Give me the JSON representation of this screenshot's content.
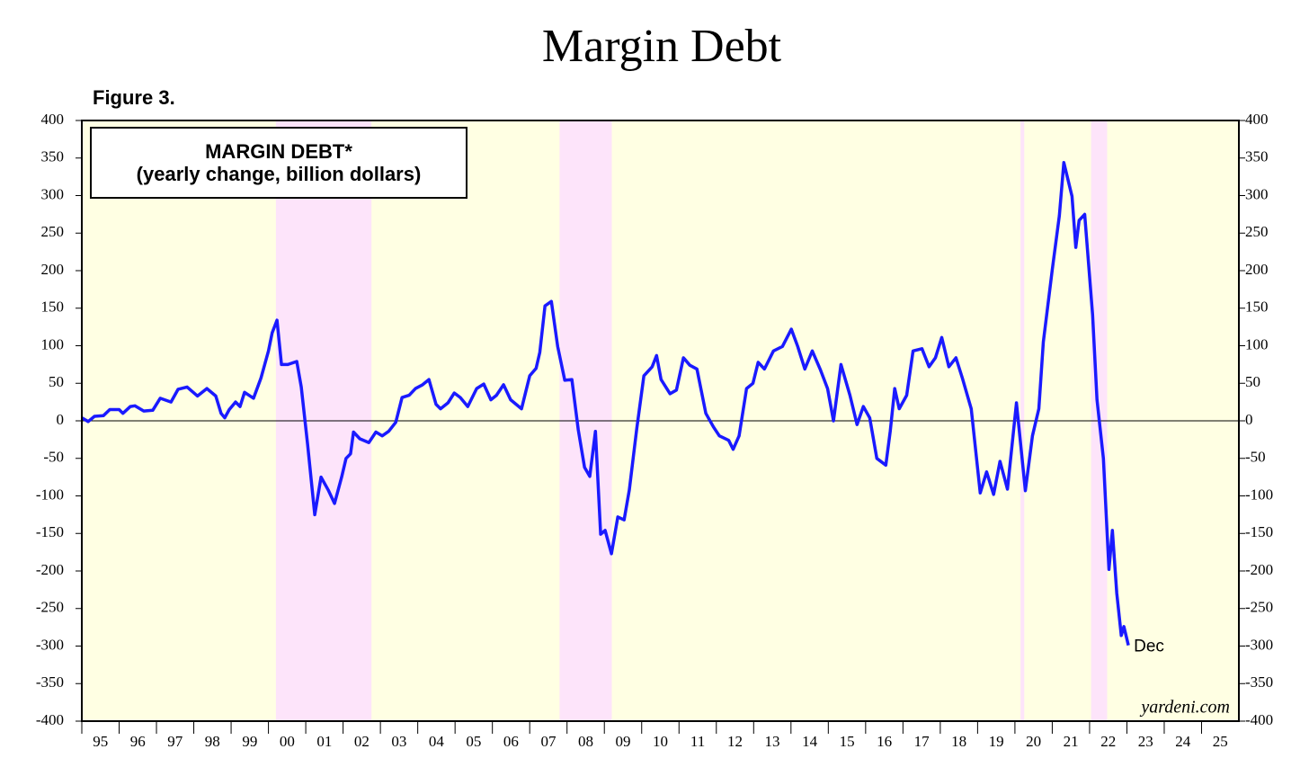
{
  "chart_data": {
    "type": "line",
    "title": "Margin Debt",
    "figure_label": "Figure 3.",
    "legend_box": [
      "MARGIN DEBT*",
      "(yearly change, billion dollars)"
    ],
    "end_label": "Dec",
    "source": "yardeni.com",
    "xlim": [
      1995,
      2026
    ],
    "xticks": [
      {
        "value": 1995,
        "label": "95"
      },
      {
        "value": 1996,
        "label": "96"
      },
      {
        "value": 1997,
        "label": "97"
      },
      {
        "value": 1998,
        "label": "98"
      },
      {
        "value": 1999,
        "label": "99"
      },
      {
        "value": 2000,
        "label": "00"
      },
      {
        "value": 2001,
        "label": "01"
      },
      {
        "value": 2002,
        "label": "02"
      },
      {
        "value": 2003,
        "label": "03"
      },
      {
        "value": 2004,
        "label": "04"
      },
      {
        "value": 2005,
        "label": "05"
      },
      {
        "value": 2006,
        "label": "06"
      },
      {
        "value": 2007,
        "label": "07"
      },
      {
        "value": 2008,
        "label": "08"
      },
      {
        "value": 2009,
        "label": "09"
      },
      {
        "value": 2010,
        "label": "10"
      },
      {
        "value": 2011,
        "label": "11"
      },
      {
        "value": 2012,
        "label": "12"
      },
      {
        "value": 2013,
        "label": "13"
      },
      {
        "value": 2014,
        "label": "14"
      },
      {
        "value": 2015,
        "label": "15"
      },
      {
        "value": 2016,
        "label": "16"
      },
      {
        "value": 2017,
        "label": "17"
      },
      {
        "value": 2018,
        "label": "18"
      },
      {
        "value": 2019,
        "label": "19"
      },
      {
        "value": 2020,
        "label": "20"
      },
      {
        "value": 2021,
        "label": "21"
      },
      {
        "value": 2022,
        "label": "22"
      },
      {
        "value": 2023,
        "label": "23"
      },
      {
        "value": 2024,
        "label": "24"
      },
      {
        "value": 2025,
        "label": "25"
      }
    ],
    "ylim": [
      -400,
      400
    ],
    "yticks": [
      400,
      350,
      300,
      250,
      200,
      150,
      100,
      50,
      0,
      -50,
      -100,
      -150,
      -200,
      -250,
      -300,
      -350,
      -400
    ],
    "y2lim": [
      -400,
      400
    ],
    "y2ticks": [
      400,
      350,
      300,
      250,
      200,
      150,
      100,
      50,
      0,
      -50,
      -100,
      -150,
      -200,
      -250,
      -300,
      -350,
      -400
    ],
    "background_color": "#ffffe3",
    "shaded_color": "#fde4fa",
    "shaded_periods": [
      [
        2000.2,
        2002.76
      ],
      [
        2007.8,
        2009.2
      ],
      [
        2020.15,
        2020.25
      ],
      [
        2022.04,
        2022.47
      ]
    ],
    "x": [
      1995.0,
      1995.17,
      1995.34,
      1995.58,
      1995.75,
      1996.0,
      1996.1,
      1996.3,
      1996.42,
      1996.66,
      1996.9,
      1997.1,
      1997.39,
      1997.58,
      1997.82,
      1998.1,
      1998.35,
      1998.59,
      1998.73,
      1998.83,
      1998.95,
      1999.12,
      1999.24,
      1999.36,
      1999.6,
      1999.8,
      2000.0,
      2000.1,
      2000.23,
      2000.35,
      2000.52,
      2000.76,
      2000.88,
      2001.05,
      2001.24,
      2001.41,
      2001.6,
      2001.77,
      2001.96,
      2002.08,
      2002.2,
      2002.28,
      2002.45,
      2002.69,
      2002.88,
      2003.05,
      2003.22,
      2003.41,
      2003.58,
      2003.77,
      2003.94,
      2004.13,
      2004.3,
      2004.49,
      2004.61,
      2004.81,
      2004.98,
      2005.14,
      2005.34,
      2005.58,
      2005.77,
      2005.96,
      2006.11,
      2006.3,
      2006.49,
      2006.78,
      2007.0,
      2007.17,
      2007.27,
      2007.41,
      2007.58,
      2007.75,
      2007.94,
      2008.13,
      2008.3,
      2008.47,
      2008.61,
      2008.76,
      2008.9,
      2009.02,
      2009.19,
      2009.36,
      2009.53,
      2009.67,
      2009.87,
      2010.06,
      2010.28,
      2010.4,
      2010.52,
      2010.76,
      2010.93,
      2011.12,
      2011.29,
      2011.48,
      2011.72,
      2011.92,
      2012.08,
      2012.33,
      2012.45,
      2012.61,
      2012.81,
      2012.98,
      2013.12,
      2013.29,
      2013.53,
      2013.77,
      2014.01,
      2014.18,
      2014.37,
      2014.57,
      2014.78,
      2014.98,
      2015.14,
      2015.34,
      2015.58,
      2015.77,
      2015.94,
      2016.11,
      2016.3,
      2016.54,
      2016.66,
      2016.78,
      2016.9,
      2017.1,
      2017.27,
      2017.51,
      2017.7,
      2017.87,
      2018.04,
      2018.23,
      2018.42,
      2018.59,
      2018.83,
      2019.07,
      2019.24,
      2019.43,
      2019.6,
      2019.8,
      2020.04,
      2020.28,
      2020.47,
      2020.64,
      2020.76,
      2021.0,
      2021.19,
      2021.31,
      2021.53,
      2021.63,
      2021.72,
      2021.87,
      2022.08,
      2022.2,
      2022.37,
      2022.52,
      2022.61,
      2022.73,
      2022.85,
      2022.92,
      2023.04
    ],
    "series": [
      {
        "name": "MARGIN DEBT*",
        "color": "#1a1aff",
        "values": [
          4,
          -1,
          6,
          7,
          15,
          15,
          10,
          19,
          20,
          13,
          14,
          30,
          25,
          42,
          45,
          33,
          43,
          33,
          10,
          4,
          15,
          25,
          19,
          38,
          30,
          57,
          93,
          117,
          134,
          75,
          75,
          79,
          45,
          -32,
          -125,
          -75,
          -92,
          -110,
          -75,
          -50,
          -44,
          -15,
          -24,
          -29,
          -15,
          -20,
          -14,
          -2,
          31,
          34,
          43,
          48,
          55,
          22,
          16,
          24,
          37,
          31,
          19,
          43,
          49,
          28,
          34,
          48,
          28,
          16,
          60,
          70,
          91,
          153,
          159,
          99,
          54,
          55,
          -12,
          -62,
          -74,
          -14,
          -151,
          -146,
          -177,
          -128,
          -132,
          -92,
          -10,
          60,
          72,
          87,
          55,
          36,
          41,
          84,
          74,
          69,
          10,
          -8,
          -20,
          -26,
          -38,
          -20,
          43,
          50,
          78,
          69,
          93,
          99,
          122,
          99,
          69,
          93,
          69,
          43,
          0,
          75,
          34,
          -5,
          19,
          4,
          -50,
          -59,
          -14,
          43,
          16,
          34,
          93,
          96,
          72,
          84,
          111,
          72,
          84,
          57,
          16,
          -96,
          -68,
          -98,
          -54,
          -91,
          24,
          -93,
          -20,
          16,
          105,
          201,
          273,
          344,
          299,
          231,
          267,
          275,
          141,
          28,
          -50,
          -198,
          -146,
          -230,
          -286,
          -274,
          -299
        ]
      }
    ]
  }
}
